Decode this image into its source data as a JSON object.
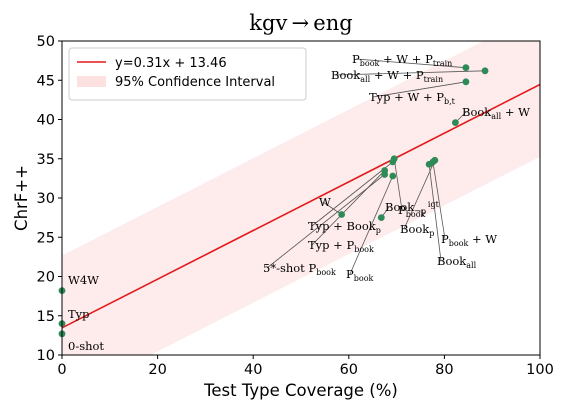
{
  "chart_data": {
    "type": "scatter",
    "title": "kgv → eng",
    "xlabel": "Test Type Coverage (%)",
    "ylabel": "ChrF++",
    "xlim": [
      0,
      100
    ],
    "ylim": [
      10,
      50
    ],
    "x_ticks": [
      "0",
      "20",
      "40",
      "60",
      "80",
      "100"
    ],
    "y_ticks": [
      "10",
      "15",
      "20",
      "25",
      "30",
      "35",
      "40",
      "45",
      "50"
    ],
    "grid": false,
    "legend_position": "top-left",
    "fit": {
      "slope": 0.31,
      "intercept": 13.46,
      "label": "y=0.31x + 13.46",
      "color": "#e31a1c"
    },
    "confidence_band": {
      "label": "95% Confidence Interval",
      "half_width": 9.2,
      "color": "#fde0e0"
    },
    "point_color": "#2e8b57",
    "points": [
      {
        "x": 0.0,
        "y": 18.2,
        "label": [
          {
            "t": "W4W"
          }
        ]
      },
      {
        "x": 0.0,
        "y": 14.0,
        "label": [
          {
            "t": "Typ"
          }
        ]
      },
      {
        "x": 0.0,
        "y": 12.7,
        "label": [
          {
            "t": "0-shot"
          }
        ]
      },
      {
        "x": 58.5,
        "y": 27.9,
        "label": [
          {
            "t": "W"
          }
        ]
      },
      {
        "x": 66.8,
        "y": 27.5,
        "label": [
          {
            "t": "Book"
          },
          {
            "t": "¬p",
            "sub": true
          }
        ]
      },
      {
        "x": 67.5,
        "y": 33.0,
        "label": [
          {
            "t": "5*-shot P"
          },
          {
            "t": "book",
            "sub": true
          }
        ]
      },
      {
        "x": 67.5,
        "y": 33.5,
        "label": [
          {
            "t": "Typ + P"
          },
          {
            "t": "book",
            "sub": true
          }
        ]
      },
      {
        "x": 69.2,
        "y": 32.8,
        "label": [
          {
            "t": "P"
          },
          {
            "t": "book",
            "sub": true
          }
        ]
      },
      {
        "x": 69.2,
        "y": 34.6,
        "label": [
          {
            "t": "Typ + Book"
          },
          {
            "t": "p",
            "sub": true
          }
        ]
      },
      {
        "x": 69.5,
        "y": 35.0,
        "label": [
          {
            "t": "P"
          },
          {
            "t": "book",
            "sub": true
          },
          {
            "t": " igt",
            "sup": true
          }
        ]
      },
      {
        "x": 76.8,
        "y": 34.3,
        "label": [
          {
            "t": "Book"
          },
          {
            "t": "all",
            "sub": true
          }
        ]
      },
      {
        "x": 77.6,
        "y": 34.6,
        "label": [
          {
            "t": "P"
          },
          {
            "t": "book",
            "sub": true
          },
          {
            "t": " + W"
          }
        ]
      },
      {
        "x": 78.0,
        "y": 34.8,
        "label": [
          {
            "t": "Book"
          },
          {
            "t": "p",
            "sub": true
          }
        ]
      },
      {
        "x": 82.3,
        "y": 39.6,
        "label": [
          {
            "t": "Book"
          },
          {
            "t": "all",
            "sub": true
          },
          {
            "t": " + W"
          }
        ]
      },
      {
        "x": 84.5,
        "y": 44.8,
        "label": [
          {
            "t": "Typ + W + P"
          },
          {
            "t": "b,t",
            "sub": true
          }
        ]
      },
      {
        "x": 84.5,
        "y": 46.6,
        "label": [
          {
            "t": "P"
          },
          {
            "t": "book",
            "sub": true
          },
          {
            "t": " + W + P"
          },
          {
            "t": "train",
            "sub": true
          }
        ]
      },
      {
        "x": 88.5,
        "y": 46.2,
        "label": [
          {
            "t": "Book"
          },
          {
            "t": "all",
            "sub": true
          },
          {
            "t": " + W + P"
          },
          {
            "t": "train",
            "sub": true
          }
        ]
      }
    ]
  }
}
